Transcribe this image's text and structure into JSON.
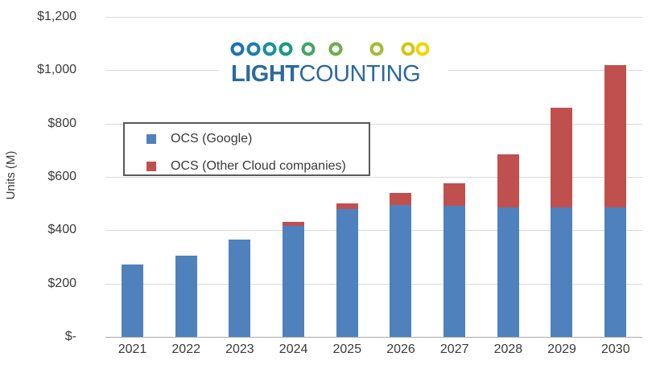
{
  "logo": {
    "wordmark_bold": "LIGHT",
    "wordmark_regular": "COUNTING",
    "wordmark_color": "#2B6A9E",
    "bead_colors": [
      "#1E71B8",
      "#1C7DB2",
      "#1B8FA0",
      "#169B82",
      "#43A564",
      "#6FAC49",
      "#A3BC35",
      "#D3C614",
      "#F2D503"
    ],
    "bead_x_positions": [
      23,
      43,
      63,
      83,
      111,
      145,
      196,
      235,
      253
    ],
    "bead_line_gradient": [
      "#1E71B8",
      "#169B82",
      "#6FAC49",
      "#F2D503"
    ]
  },
  "chart_data": {
    "type": "bar",
    "stacked": true,
    "title": "",
    "ylabel": "Units (M)",
    "categories": [
      "2021",
      "2022",
      "2023",
      "2024",
      "2025",
      "2026",
      "2027",
      "2028",
      "2029",
      "2030"
    ],
    "series": [
      {
        "name": "OCS (Google)",
        "color": "#4F81BD",
        "values": [
          270,
          305,
          365,
          415,
          480,
          495,
          490,
          485,
          485,
          485
        ]
      },
      {
        "name": "OCS (Other Cloud companies)",
        "color": "#C0504D",
        "values": [
          0,
          0,
          0,
          15,
          20,
          45,
          85,
          200,
          375,
          535
        ]
      }
    ],
    "totals": [
      270,
      305,
      365,
      430,
      500,
      540,
      575,
      685,
      860,
      1020
    ],
    "y_ticks": [
      "$1,200",
      "$1,000",
      "$800",
      "$600",
      "$400",
      "$200",
      "$-"
    ],
    "y_tick_values": [
      1200,
      1000,
      800,
      600,
      400,
      200,
      0
    ],
    "ylim": [
      0,
      1200
    ],
    "grid": true,
    "legend_position": "inside-top-left",
    "gridline_color": "#D9D9D9",
    "axis_line_color": "#A9A9A9"
  }
}
